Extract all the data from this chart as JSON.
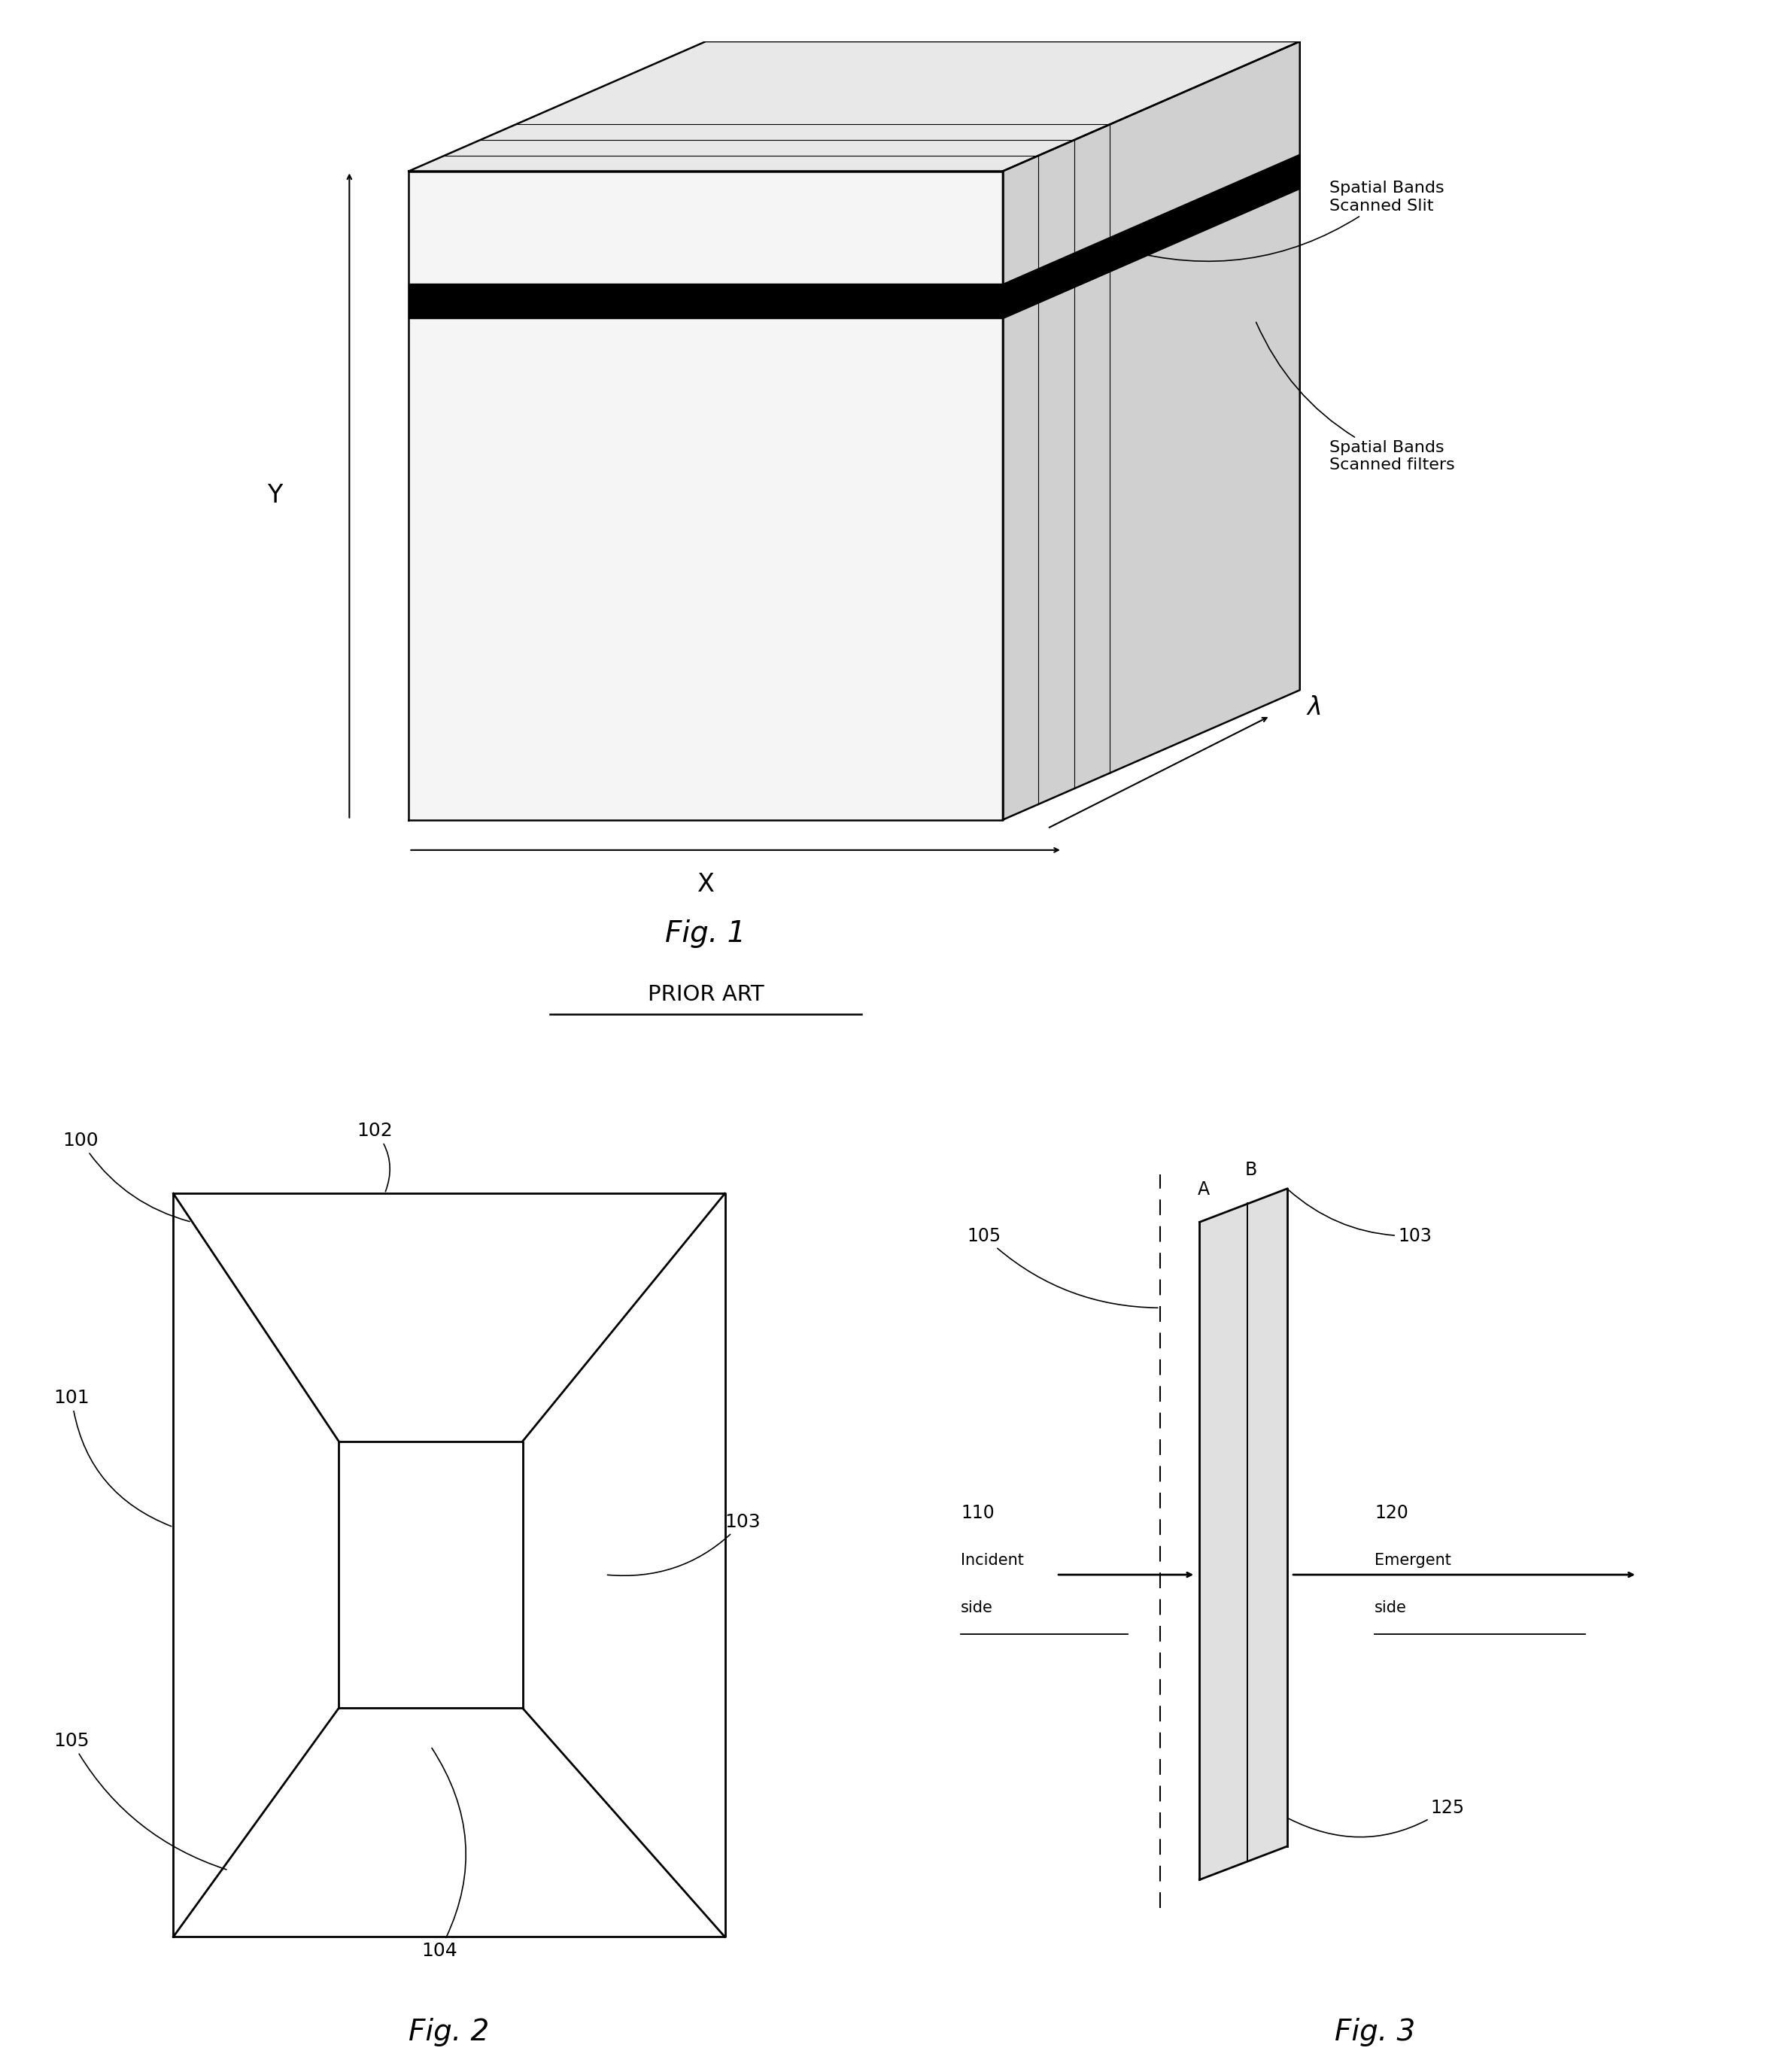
{
  "bg_color": "#ffffff",
  "fig_width": 23.5,
  "fig_height": 27.54,
  "fig1": {
    "title": "Fig. 1",
    "subtitle": "PRIOR ART",
    "label_spatial_slit": "Spatial Bands\nScanned Slit",
    "label_spatial_filters": "Spatial Bands\nScanned filters",
    "label_x": "X",
    "label_y": "Y",
    "label_lambda": "λ"
  },
  "fig2": {
    "title": "Fig. 2"
  },
  "fig3": {
    "title": "Fig. 3"
  }
}
